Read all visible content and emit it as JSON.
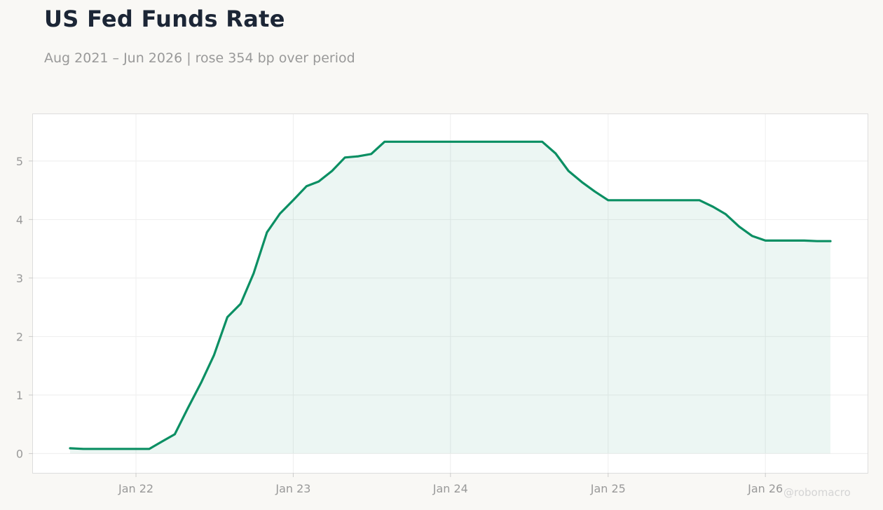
{
  "title": "US Fed Funds Rate",
  "subtitle": "Aug 2021 – Jun 2026 | rose 354 bp over period",
  "watermark": "@robomacro",
  "colors": {
    "background": "#f9f8f5",
    "plot_background": "#ffffff",
    "line": "#0b8f63",
    "fill": "#0b8f63",
    "tick_label": "#999999",
    "grid": "#eeeeee",
    "frame": "#dddddd"
  },
  "chart_data": {
    "type": "area",
    "title": "US Fed Funds Rate",
    "subtitle": "Aug 2021 – Jun 2026 | rose 354 bp over period",
    "xlabel": "",
    "ylabel": "",
    "x_type": "date",
    "ylim": [
      -0.33,
      5.8
    ],
    "yticks": [
      0,
      1,
      2,
      3,
      4,
      5
    ],
    "xticks": [
      {
        "date": "2022-01-01",
        "label": "Jan 22"
      },
      {
        "date": "2023-01-01",
        "label": "Jan 23"
      },
      {
        "date": "2024-01-01",
        "label": "Jan 24"
      },
      {
        "date": "2025-01-01",
        "label": "Jan 25"
      },
      {
        "date": "2026-01-01",
        "label": "Jan 26"
      }
    ],
    "grid": true,
    "legend": "none",
    "series": [
      {
        "points": [
          [
            "2021-08-01",
            0.09
          ],
          [
            "2021-09-01",
            0.08
          ],
          [
            "2021-10-01",
            0.08
          ],
          [
            "2021-11-01",
            0.08
          ],
          [
            "2021-12-01",
            0.08
          ],
          [
            "2022-01-01",
            0.08
          ],
          [
            "2022-02-01",
            0.08
          ],
          [
            "2022-03-01",
            0.2
          ],
          [
            "2022-04-01",
            0.33
          ],
          [
            "2022-05-01",
            0.77
          ],
          [
            "2022-06-01",
            1.21
          ],
          [
            "2022-07-01",
            1.68
          ],
          [
            "2022-08-01",
            2.33
          ],
          [
            "2022-09-01",
            2.56
          ],
          [
            "2022-10-01",
            3.08
          ],
          [
            "2022-11-01",
            3.78
          ],
          [
            "2022-12-01",
            4.1
          ],
          [
            "2023-01-01",
            4.33
          ],
          [
            "2023-02-01",
            4.57
          ],
          [
            "2023-03-01",
            4.65
          ],
          [
            "2023-04-01",
            4.83
          ],
          [
            "2023-05-01",
            5.06
          ],
          [
            "2023-06-01",
            5.08
          ],
          [
            "2023-07-01",
            5.12
          ],
          [
            "2023-08-01",
            5.33
          ],
          [
            "2023-09-01",
            5.33
          ],
          [
            "2023-10-01",
            5.33
          ],
          [
            "2023-11-01",
            5.33
          ],
          [
            "2023-12-01",
            5.33
          ],
          [
            "2024-01-01",
            5.33
          ],
          [
            "2024-02-01",
            5.33
          ],
          [
            "2024-03-01",
            5.33
          ],
          [
            "2024-04-01",
            5.33
          ],
          [
            "2024-05-01",
            5.33
          ],
          [
            "2024-06-01",
            5.33
          ],
          [
            "2024-07-01",
            5.33
          ],
          [
            "2024-08-01",
            5.33
          ],
          [
            "2024-09-01",
            5.13
          ],
          [
            "2024-10-01",
            4.83
          ],
          [
            "2024-11-01",
            4.64
          ],
          [
            "2024-12-01",
            4.48
          ],
          [
            "2025-01-01",
            4.33
          ],
          [
            "2025-02-01",
            4.33
          ],
          [
            "2025-03-01",
            4.33
          ],
          [
            "2025-04-01",
            4.33
          ],
          [
            "2025-05-01",
            4.33
          ],
          [
            "2025-06-01",
            4.33
          ],
          [
            "2025-07-01",
            4.33
          ],
          [
            "2025-08-01",
            4.33
          ],
          [
            "2025-09-01",
            4.22
          ],
          [
            "2025-10-01",
            4.09
          ],
          [
            "2025-11-01",
            3.88
          ],
          [
            "2025-12-01",
            3.72
          ],
          [
            "2026-01-01",
            3.64
          ],
          [
            "2026-02-01",
            3.64
          ],
          [
            "2026-03-01",
            3.64
          ],
          [
            "2026-04-01",
            3.64
          ],
          [
            "2026-05-01",
            3.63
          ],
          [
            "2026-06-01",
            3.63
          ]
        ]
      }
    ]
  }
}
